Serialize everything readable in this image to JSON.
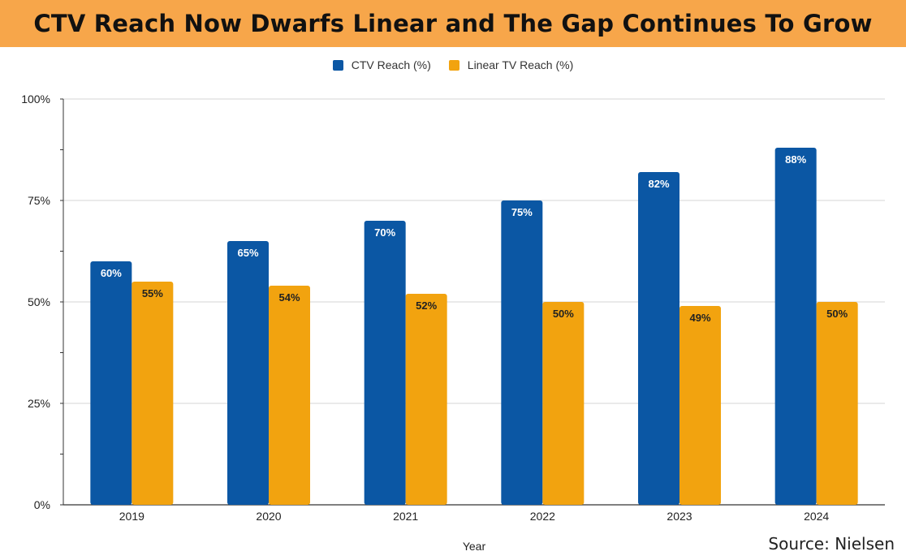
{
  "chart_data": {
    "type": "bar",
    "title": "CTV Reach Now Dwarfs Linear and The Gap Continues To Grow",
    "xlabel": "Year",
    "ylabel": "",
    "categories": [
      "2019",
      "2020",
      "2021",
      "2022",
      "2023",
      "2024"
    ],
    "series": [
      {
        "name": "CTV Reach (%)",
        "color": "#0b57a4",
        "values": [
          60,
          65,
          70,
          75,
          82,
          88
        ],
        "labels": [
          "60%",
          "65%",
          "70%",
          "75%",
          "82%",
          "88%"
        ]
      },
      {
        "name": "Linear TV Reach (%)",
        "color": "#f2a30f",
        "values": [
          55,
          54,
          52,
          50,
          49,
          50
        ],
        "labels": [
          "55%",
          "54%",
          "52%",
          "50%",
          "49%",
          "50%"
        ]
      }
    ],
    "ylim": [
      0,
      100
    ],
    "yticks": [
      0,
      25,
      50,
      75,
      100
    ],
    "ytick_labels": [
      "0%",
      "25%",
      "50%",
      "75%",
      "100%"
    ],
    "grid": true,
    "legend_position": "top-center"
  },
  "source_text": "Source: Nielsen"
}
